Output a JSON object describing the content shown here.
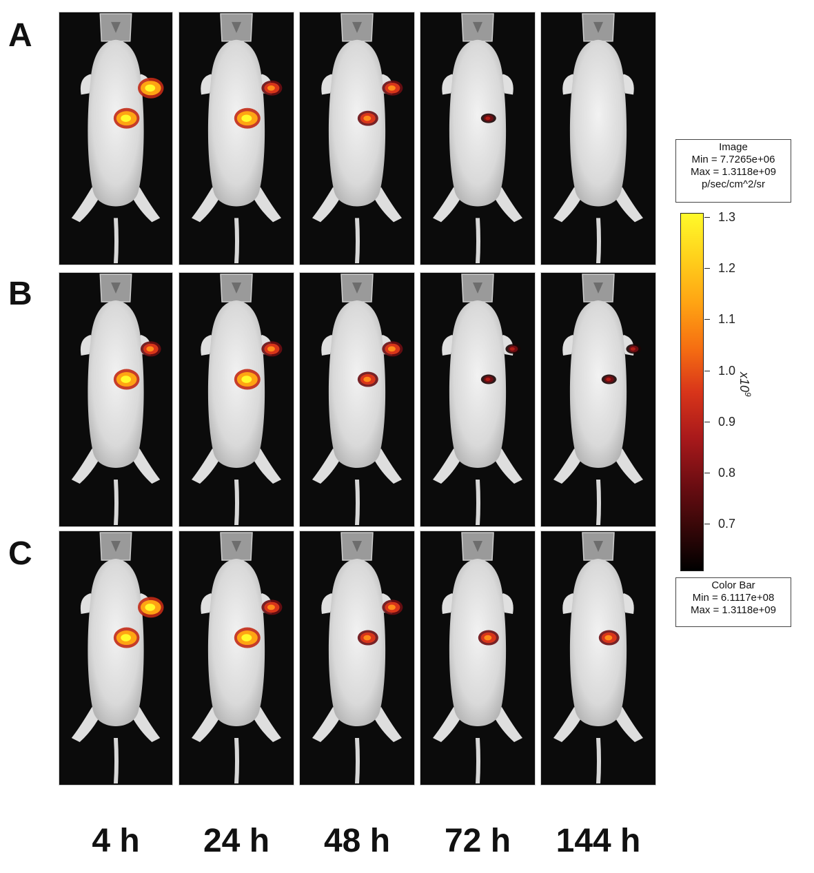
{
  "rows": [
    {
      "label": "A"
    },
    {
      "label": "B"
    },
    {
      "label": "C"
    }
  ],
  "timepoints": [
    "4 h",
    "24 h",
    "48 h",
    "72 h",
    "144 h"
  ],
  "image_box": {
    "title": "Image",
    "min": "Min = 7.7265e+06",
    "max": "Max = 1.3118e+09",
    "units": "p/sec/cm^2/sr"
  },
  "colorbar": {
    "ticks": [
      "1.3",
      "1.2",
      "1.1",
      "1.0",
      "0.9",
      "0.8",
      "0.7"
    ],
    "exponent_base": "x10",
    "exponent_power": "9",
    "colors": [
      "#fffa2a",
      "#ffa413",
      "#d8351a",
      "#6c0d12",
      "#000000"
    ]
  },
  "colorbar_box": {
    "title": "Color Bar",
    "min": "Min = 6.1117e+08",
    "max": "Max = 1.3118e+09"
  },
  "signal_intensity": [
    [
      [
        "high",
        "high"
      ],
      [
        "high",
        "medium"
      ],
      [
        "medium",
        "medium"
      ],
      [
        "low"
      ],
      []
    ],
    [
      [
        "high",
        "medium"
      ],
      [
        "high",
        "medium"
      ],
      [
        "medium",
        "medium"
      ],
      [
        "low",
        "low"
      ],
      [
        "low",
        "low"
      ]
    ],
    [
      [
        "high",
        "high"
      ],
      [
        "high",
        "medium"
      ],
      [
        "medium",
        "medium"
      ],
      [
        "medium"
      ],
      [
        "medium"
      ]
    ]
  ]
}
